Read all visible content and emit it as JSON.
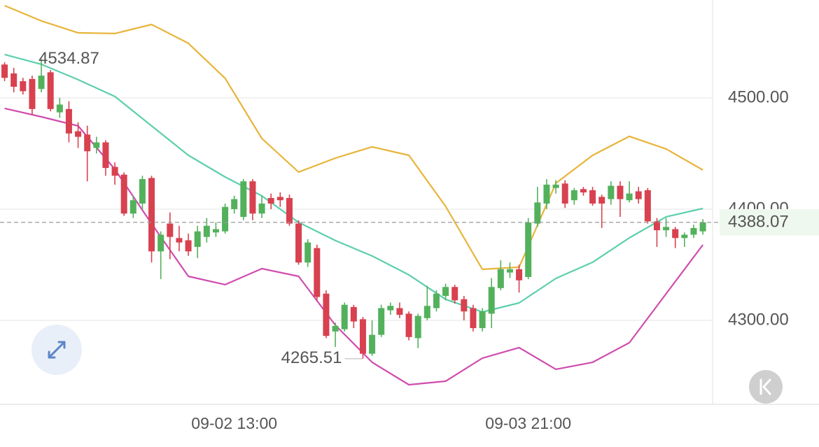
{
  "chart_data": {
    "type": "candlestick",
    "categories": [
      null,
      null,
      null,
      null,
      null,
      null,
      null,
      null,
      null,
      null,
      null,
      null,
      null,
      null,
      null,
      null,
      null,
      null,
      null,
      null,
      null,
      null,
      null,
      null,
      null,
      "09-02 13:00",
      null,
      null,
      null,
      null,
      null,
      null,
      null,
      null,
      null,
      null,
      null,
      null,
      null,
      null,
      null,
      null,
      null,
      null,
      null,
      null,
      null,
      null,
      null,
      null,
      null,
      null,
      null,
      null,
      null,
      null,
      null,
      "09-03 21:00",
      null,
      null,
      null,
      null,
      null,
      null,
      null,
      null,
      null,
      null,
      null,
      null,
      null,
      null,
      null,
      null,
      null,
      null,
      null
    ],
    "open": [
      4530,
      4522,
      4515,
      4517,
      4508,
      4523,
      4487,
      4490,
      4470,
      4467,
      4455,
      4460,
      4438,
      4431,
      4396,
      4405,
      4428,
      4362,
      4387,
      4374,
      4372,
      4366,
      4375,
      4379,
      4380,
      4400,
      4393,
      4425,
      4396,
      4410,
      4411,
      4410,
      4387,
      4352,
      4365,
      4324,
      4290,
      4292,
      4312,
      4301,
      4270,
      4287,
      4309,
      4311,
      4306,
      4284,
      4302,
      4311,
      4322,
      4330,
      4319,
      4311,
      4293,
      4306,
      4329,
      4343,
      4346,
      4339,
      4387,
      4405,
      4419,
      4423,
      4408,
      4418,
      4417,
      4411,
      4409,
      4421,
      4408,
      4416,
      4417,
      4389,
      4381,
      4382,
      4374,
      4377,
      4380
    ],
    "high": [
      4532,
      4527,
      4518,
      4520,
      4534.87,
      4525,
      4500,
      4497,
      4478,
      4475,
      4465,
      4462,
      4442,
      4433,
      4412,
      4430,
      4430,
      4380,
      4397,
      4385,
      4378,
      4385,
      4392,
      4388,
      4405,
      4412,
      4427,
      4427,
      4412,
      4414,
      4415,
      4413,
      4390,
      4373,
      4368,
      4327,
      4298,
      4316,
      4314,
      4303,
      4300,
      4314,
      4316,
      4316,
      4308,
      4306,
      4331,
      4327,
      4333,
      4332,
      4322,
      4314,
      4311,
      4338,
      4354,
      4352,
      4350,
      4392,
      4420,
      4427,
      4426,
      4426,
      4419,
      4420,
      4420,
      4413,
      4425,
      4425,
      4425,
      4420,
      4419,
      4392,
      4392,
      4384,
      4379,
      4386,
      4391
    ],
    "low": [
      4515,
      4505,
      4503,
      4485,
      4505,
      4488,
      4482,
      4460,
      4455,
      4425,
      4450,
      4430,
      4422,
      4394,
      4392,
      4400,
      4352,
      4337,
      4355,
      4362,
      4358,
      4356,
      4370,
      4375,
      4378,
      4396,
      4390,
      4390,
      4392,
      4400,
      4402,
      4385,
      4350,
      4348,
      4318,
      4284,
      4276,
      4290,
      4293,
      4265.51,
      4268,
      4285,
      4305,
      4302,
      4282,
      4275,
      4300,
      4308,
      4318,
      4315,
      4300,
      4290,
      4290,
      4293,
      4327,
      4338,
      4325,
      4337,
      4384,
      4400,
      4414,
      4401,
      4404,
      4412,
      4403,
      4383,
      4404,
      4393,
      4406,
      4405,
      4387,
      4366,
      4375,
      4365,
      4366,
      4374,
      4377
    ],
    "close": [
      4518,
      4510,
      4506,
      4490,
      4520,
      4490,
      4494,
      4468,
      4465,
      4452,
      4460,
      4437,
      4430,
      4396,
      4408,
      4427,
      4362,
      4377,
      4375,
      4370,
      4362,
      4380,
      4385,
      4382,
      4402,
      4409,
      4425,
      4396,
      4405,
      4405,
      4408,
      4387,
      4352,
      4370,
      4321,
      4286,
      4295,
      4314,
      4299,
      4270,
      4287,
      4311,
      4313,
      4305,
      4285,
      4304,
      4313,
      4324,
      4330,
      4318,
      4308,
      4293,
      4308,
      4330,
      4346,
      4346,
      4336,
      4388,
      4406,
      4422,
      4422,
      4405,
      4417,
      4415,
      4405,
      4405,
      4421,
      4409,
      4414,
      4409,
      4389,
      4381,
      4384,
      4374,
      4377,
      4383,
      4388.07
    ],
    "up_color": "#53b15c",
    "down_color": "#d8414f",
    "bands": [
      {
        "color": "#e8b43a",
        "x": [
          0,
          4,
          8,
          12,
          16,
          20,
          24,
          28,
          32,
          36,
          40,
          44,
          48,
          52,
          56,
          60,
          64,
          68,
          72,
          76
        ],
        "values": [
          4583.0,
          4569.2,
          4558.5,
          4557.9,
          4566.0,
          4549.1,
          4517.6,
          4463.5,
          4433.3,
          4445.9,
          4456.0,
          4448.4,
          4402.5,
          4345.9,
          4347.8,
          4423.3,
          4448.4,
          4465.4,
          4454.1,
          4435.2
        ]
      },
      {
        "color": "#5ccfad",
        "x": [
          0,
          4,
          8,
          12,
          16,
          20,
          24,
          28,
          32,
          36,
          40,
          44,
          48,
          52,
          56,
          60,
          64,
          68,
          72,
          76
        ],
        "values": [
          4539.0,
          4530.2,
          4516.4,
          4501.3,
          4474.8,
          4448.4,
          4428.9,
          4411.9,
          4388.1,
          4371.7,
          4357.9,
          4340.9,
          4318.9,
          4307.5,
          4315.7,
          4337.7,
          4352.2,
          4374.2,
          4393.1,
          4400.6
        ]
      },
      {
        "color": "#cf4cae",
        "x": [
          0,
          4,
          8,
          12,
          16,
          20,
          24,
          28,
          32,
          36,
          40,
          44,
          48,
          52,
          56,
          60,
          64,
          68,
          72,
          76
        ],
        "values": [
          4490.6,
          4483.0,
          4474.8,
          4435.8,
          4386.8,
          4339.6,
          4332.1,
          4346.5,
          4339.6,
          4295.6,
          4262.3,
          4242.1,
          4245.3,
          4266.0,
          4275.5,
          4256.0,
          4262.3,
          4279.9,
          4323.9,
          4367.9
        ]
      }
    ],
    "high_label": 4534.87,
    "low_label": 4265.51,
    "last_price": 4388.07,
    "last_price_color": "#4fae58",
    "ylim": [
      4224.5,
      4588
    ],
    "yticks": [
      {
        "value": 4300,
        "label": "4300.00"
      },
      {
        "value": 4400,
        "label": "4400.00"
      },
      {
        "value": 4500,
        "label": "4500.00"
      }
    ],
    "grid": true
  }
}
